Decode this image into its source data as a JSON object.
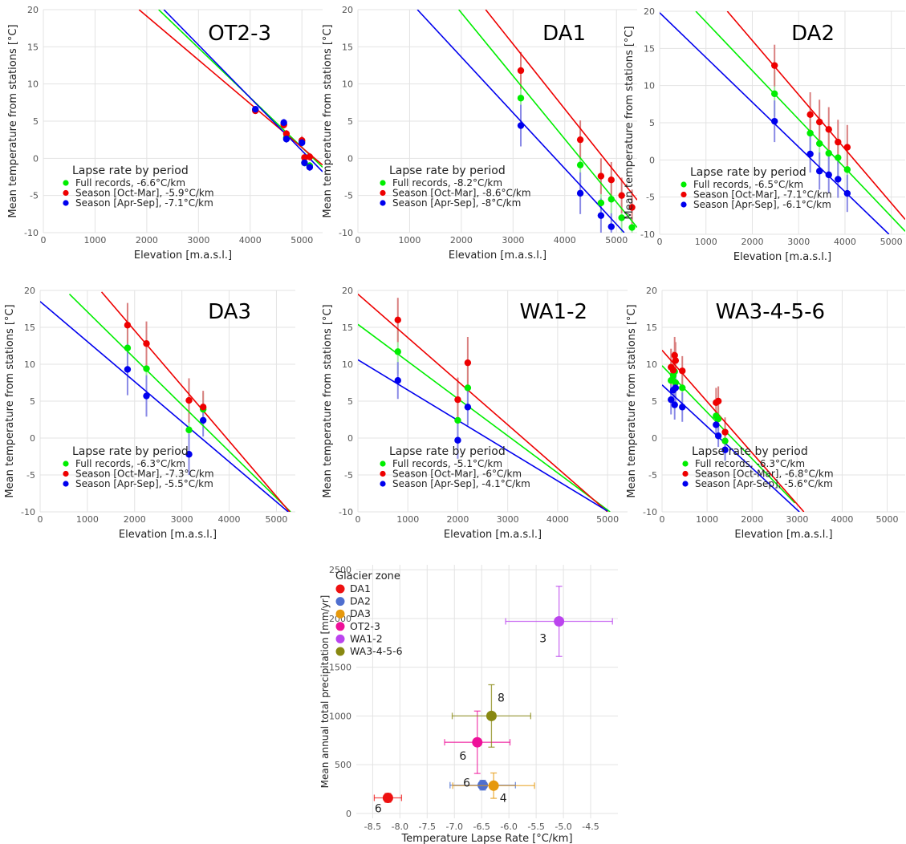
{
  "colors": {
    "full": "#00ee00",
    "oct_mar": "#ee0000",
    "apr_sep": "#0000ee",
    "error_full": "#a6e8a6",
    "error_oct": "#d98080",
    "error_apr": "#8a8ae6"
  },
  "chart_data": [
    {
      "type": "scatter",
      "title": "OT2-3",
      "xlabel": "Elevation [m.a.s.l.]",
      "ylabel": "Mean temperature from stations [°C]",
      "xlim": [
        0,
        5400
      ],
      "ylim": [
        -10,
        20
      ],
      "xticks": [
        0,
        1000,
        2000,
        3000,
        4000,
        5000
      ],
      "yticks": [
        -10,
        -5,
        0,
        5,
        10,
        15,
        20
      ],
      "legend_title": "Lapse rate by period",
      "legend": [
        "Full records,       -6.6°C/km",
        "Season [Oct-Mar],  -5.9°C/km",
        "Season [Apr-Sep],   -7.1°C/km"
      ],
      "series": [
        {
          "key": "full",
          "points": [
            [
              4100,
              6.5,
              0.3
            ],
            [
              4650,
              4.6,
              0.5
            ],
            [
              4700,
              2.8,
              0.5
            ],
            [
              5000,
              2.3,
              0.6
            ],
            [
              5050,
              -0.6,
              0.5
            ],
            [
              5150,
              -1.0,
              0.5
            ]
          ],
          "line": [
            [
              2230,
              20
            ],
            [
              5400,
              -1.2
            ]
          ]
        },
        {
          "key": "oct_mar",
          "points": [
            [
              4100,
              6.4,
              0.3
            ],
            [
              4650,
              4.5,
              0.5
            ],
            [
              4700,
              3.3,
              0.5
            ],
            [
              5000,
              2.4,
              0.6
            ],
            [
              5050,
              0.1,
              0.5
            ],
            [
              5150,
              0.2,
              0.5
            ]
          ],
          "line": [
            [
              1850,
              20
            ],
            [
              5400,
              -0.9
            ]
          ]
        },
        {
          "key": "apr_sep",
          "points": [
            [
              4100,
              6.6,
              0.3
            ],
            [
              4650,
              4.8,
              0.5
            ],
            [
              4700,
              2.6,
              0.5
            ],
            [
              5000,
              2.1,
              0.6
            ],
            [
              5050,
              -0.6,
              0.5
            ],
            [
              5150,
              -1.2,
              0.5
            ]
          ],
          "line": [
            [
              2330,
              20
            ],
            [
              5400,
              -1.8
            ]
          ]
        }
      ]
    },
    {
      "type": "scatter",
      "title": "DA1",
      "xlabel": "Elevation [m.a.s.l.]",
      "ylabel": "Mean temperature from stations [°C]",
      "xlim": [
        0,
        5400
      ],
      "ylim": [
        -10,
        20
      ],
      "xticks": [
        0,
        1000,
        2000,
        3000,
        4000,
        5000
      ],
      "yticks": [
        -10,
        -5,
        0,
        5,
        10,
        15,
        20
      ],
      "legend_title": "Lapse rate by period",
      "legend": [
        "Full records,        -8.2°C/km",
        "Season [Oct-Mar],  -8.6°C/km",
        "Season [Apr-Sep],   -8°C/km"
      ],
      "series": [
        {
          "key": "full",
          "points": [
            [
              3150,
              8.1,
              2.8
            ],
            [
              4300,
              -0.9,
              2.8
            ],
            [
              4700,
              -6.0,
              2.2
            ],
            [
              4900,
              -5.5,
              2.4
            ],
            [
              5100,
              -8.0,
              2.0
            ],
            [
              5300,
              -9.3,
              2.0
            ]
          ],
          "line": [
            [
              1950,
              20
            ],
            [
              5400,
              -9.3
            ]
          ]
        },
        {
          "key": "oct_mar",
          "points": [
            [
              3150,
              11.8,
              2.5
            ],
            [
              4300,
              2.5,
              2.6
            ],
            [
              4700,
              -2.4,
              2.4
            ],
            [
              4900,
              -2.9,
              2.4
            ],
            [
              5100,
              -5.0,
              2.4
            ],
            [
              5300,
              -6.6,
              2.4
            ]
          ],
          "line": [
            [
              2470,
              20
            ],
            [
              5400,
              -5.6
            ]
          ]
        },
        {
          "key": "apr_sep",
          "points": [
            [
              3150,
              4.4,
              2.8
            ],
            [
              4300,
              -4.7,
              2.8
            ],
            [
              4700,
              -7.7,
              2.3
            ],
            [
              4900,
              -9.2,
              1.8
            ]
          ],
          "line": [
            [
              1150,
              20
            ],
            [
              5150,
              -10
            ]
          ]
        }
      ]
    },
    {
      "type": "scatter",
      "title": "DA2",
      "xlabel": "Elevation [m.a.s.l.]",
      "ylabel": "Mean temperature from stations [°C]",
      "xlim": [
        0,
        5300
      ],
      "ylim": [
        -10,
        20
      ],
      "xticks": [
        0,
        1000,
        2000,
        3000,
        4000,
        5000
      ],
      "yticks": [
        -10,
        -5,
        0,
        5,
        10,
        15,
        20
      ],
      "legend_title": "Lapse rate by period",
      "legend": [
        "Full records,        -6.5°C/km",
        "Season [Oct-Mar],  -7.1°C/km",
        "Season [Apr-Sep],   -6.1°C/km"
      ],
      "series": [
        {
          "key": "full",
          "points": [
            [
              2480,
              8.9,
              3.0
            ],
            [
              3250,
              3.6,
              2.8
            ],
            [
              3450,
              2.2,
              2.8
            ],
            [
              3650,
              0.9,
              2.8
            ],
            [
              3850,
              0.3,
              2.8
            ],
            [
              4050,
              -1.3,
              2.8
            ]
          ],
          "line": [
            [
              780,
              20
            ],
            [
              5300,
              -9.6
            ]
          ]
        },
        {
          "key": "oct_mar",
          "points": [
            [
              2480,
              12.7,
              2.8
            ],
            [
              3250,
              6.1,
              3.0
            ],
            [
              3450,
              5.1,
              3.0
            ],
            [
              3650,
              4.1,
              3.0
            ],
            [
              3850,
              2.4,
              3.0
            ],
            [
              4050,
              1.7,
              3.0
            ]
          ],
          "line": [
            [
              1460,
              20
            ],
            [
              5300,
              -8.0
            ]
          ]
        },
        {
          "key": "apr_sep",
          "points": [
            [
              2480,
              5.2,
              2.8
            ],
            [
              3250,
              0.8,
              2.5
            ],
            [
              3450,
              -1.5,
              2.5
            ],
            [
              3650,
              -2.0,
              2.5
            ],
            [
              3850,
              -2.6,
              2.5
            ],
            [
              4050,
              -4.5,
              2.5
            ]
          ],
          "line": [
            [
              0,
              19.8
            ],
            [
              4950,
              -10
            ]
          ]
        }
      ]
    },
    {
      "type": "scatter",
      "title": "DA3",
      "xlabel": "Elevation [m.a.s.l.]",
      "ylabel": "Mean temperature from stations [°C]",
      "xlim": [
        0,
        5400
      ],
      "ylim": [
        -10,
        20
      ],
      "xticks": [
        0,
        1000,
        2000,
        3000,
        4000,
        5000
      ],
      "yticks": [
        -10,
        -5,
        0,
        5,
        10,
        15,
        20
      ],
      "legend_title": "Lapse rate by period",
      "legend": [
        "Full records,        -6.3°C/km",
        "Season [Oct-Mar],  -7.3°C/km",
        "Season [Apr-Sep],   -5.5°C/km"
      ],
      "series": [
        {
          "key": "full",
          "points": [
            [
              1850,
              12.2,
              3.0
            ],
            [
              2250,
              9.4,
              3.0
            ],
            [
              3150,
              1.1,
              3.0
            ],
            [
              3450,
              3.9,
              2.2
            ]
          ],
          "line": [
            [
              620,
              19.5
            ],
            [
              5300,
              -10
            ]
          ]
        },
        {
          "key": "oct_mar",
          "points": [
            [
              1850,
              15.3,
              3.0
            ],
            [
              2250,
              12.8,
              3.0
            ],
            [
              3150,
              5.1,
              3.0
            ],
            [
              3450,
              4.2,
              2.2
            ]
          ],
          "line": [
            [
              1300,
              19.8
            ],
            [
              5280,
              -10
            ]
          ]
        },
        {
          "key": "apr_sep",
          "points": [
            [
              1850,
              9.3,
              3.5
            ],
            [
              2250,
              5.7,
              2.8
            ],
            [
              3150,
              -2.2,
              2.8
            ],
            [
              3450,
              2.4,
              2.2
            ]
          ],
          "line": [
            [
              0,
              18.5
            ],
            [
              5250,
              -10
            ]
          ]
        }
      ]
    },
    {
      "type": "scatter",
      "title": "WA1-2",
      "xlabel": "Elevation [m.a.s.l.]",
      "ylabel": "Mean temperature from stations [°C]",
      "xlim": [
        0,
        5400
      ],
      "ylim": [
        -10,
        20
      ],
      "xticks": [
        0,
        1000,
        2000,
        3000,
        4000,
        5000
      ],
      "yticks": [
        -10,
        -5,
        0,
        5,
        10,
        15,
        20
      ],
      "legend_title": "Lapse rate by period",
      "legend": [
        "Full records,        -5.1°C/km",
        "Season [Oct-Mar],   -6°C/km",
        "Season [Apr-Sep],   -4.1°C/km"
      ],
      "series": [
        {
          "key": "full",
          "points": [
            [
              800,
              11.7,
              3.0
            ],
            [
              2000,
              2.4,
              3.0
            ],
            [
              2200,
              6.8,
              3.0
            ]
          ],
          "line": [
            [
              0,
              15.4
            ],
            [
              5050,
              -10
            ]
          ]
        },
        {
          "key": "oct_mar",
          "points": [
            [
              800,
              16.0,
              3.0
            ],
            [
              2000,
              5.2,
              3.0
            ],
            [
              2200,
              10.2,
              3.5
            ]
          ],
          "line": [
            [
              0,
              19.5
            ],
            [
              5000,
              -10
            ]
          ]
        },
        {
          "key": "apr_sep",
          "points": [
            [
              800,
              7.8,
              2.5
            ],
            [
              2000,
              -0.3,
              2.5
            ],
            [
              2200,
              4.2,
              2.5
            ]
          ],
          "line": [
            [
              0,
              10.6
            ],
            [
              5000,
              -9.9
            ]
          ]
        }
      ]
    },
    {
      "type": "scatter",
      "title": "WA3-4-5-6",
      "xlabel": "Elevation [m.a.s.l.]",
      "ylabel": "Mean temperature from stations [°C]",
      "xlim": [
        0,
        5400
      ],
      "ylim": [
        -10,
        20
      ],
      "xticks": [
        0,
        1000,
        2000,
        3000,
        4000,
        5000
      ],
      "yticks": [
        -10,
        -5,
        0,
        5,
        10,
        15,
        20
      ],
      "legend_title": "Lapse rate by period",
      "legend": [
        "Full records,        -6.3°C/km",
        "Season [Oct-Mar],  -6.8°C/km",
        "Season [Apr-Sep],   -5.6°C/km"
      ],
      "series": [
        {
          "key": "full",
          "points": [
            [
              200,
              7.8,
              2.0
            ],
            [
              250,
              8.5,
              2.0
            ],
            [
              280,
              9.0,
              2.0
            ],
            [
              300,
              7.5,
              2.0
            ],
            [
              450,
              6.8,
              2.0
            ],
            [
              1200,
              3.0,
              1.5
            ],
            [
              1250,
              2.6,
              1.5
            ],
            [
              1400,
              -0.4,
              1.5
            ]
          ],
          "line": [
            [
              0,
              9.8
            ],
            [
              2950,
              -8.8
            ]
          ]
        },
        {
          "key": "oct_mar",
          "points": [
            [
              200,
              9.6,
              2.5
            ],
            [
              250,
              9.2,
              2.5
            ],
            [
              280,
              11.2,
              2.5
            ],
            [
              300,
              10.5,
              2.5
            ],
            [
              450,
              9.1,
              2.0
            ],
            [
              1200,
              4.8,
              2.0
            ],
            [
              1250,
              5.0,
              2.0
            ],
            [
              1400,
              0.8,
              2.0
            ]
          ],
          "line": [
            [
              0,
              11.9
            ],
            [
              3150,
              -10
            ]
          ]
        },
        {
          "key": "apr_sep",
          "points": [
            [
              200,
              5.2,
              2.0
            ],
            [
              250,
              6.5,
              2.0
            ],
            [
              280,
              4.5,
              2.0
            ],
            [
              300,
              6.8,
              2.0
            ],
            [
              450,
              4.2,
              2.0
            ],
            [
              1200,
              1.8,
              1.5
            ],
            [
              1250,
              0.3,
              1.5
            ],
            [
              1400,
              -1.6,
              1.5
            ]
          ],
          "line": [
            [
              0,
              7.2
            ],
            [
              3050,
              -10
            ]
          ]
        }
      ]
    },
    {
      "type": "scatter",
      "title": "",
      "xlabel": "Temperature Lapse Rate [°C/km]",
      "ylabel": "Mean annual total precipitation [mm/yr]",
      "xlim": [
        -8.8,
        -4.0
      ],
      "ylim": [
        -50,
        2550
      ],
      "xticks": [
        -8.5,
        -8.0,
        -7.5,
        -7.0,
        -6.5,
        -6.0,
        -5.5,
        -5.0,
        -4.5
      ],
      "xticklabels": [
        "-8.5",
        "-8.0",
        "-7.5",
        "-7.0",
        "-6.5",
        "-6.0",
        "-5.5",
        "-5.0",
        "-4.5"
      ],
      "yticks": [
        0,
        500,
        1000,
        1500,
        2000,
        2500
      ],
      "legend_title": "Glacier zone",
      "legend_position": "top-left",
      "points": [
        {
          "zone": "DA1",
          "color": "#ee1111",
          "x": -8.22,
          "y": 160,
          "xerr": 0.25,
          "yerr": 45,
          "label": "6"
        },
        {
          "zone": "DA2",
          "color": "#4f6fcf",
          "x": -6.48,
          "y": 290,
          "xerr": 0.6,
          "yerr": 50,
          "label": "6"
        },
        {
          "zone": "DA3",
          "color": "#e6990d",
          "x": -6.28,
          "y": 285,
          "xerr": 0.75,
          "yerr": 130,
          "label": "4"
        },
        {
          "zone": "OT2-3",
          "color": "#ee1199",
          "x": -6.58,
          "y": 730,
          "xerr": 0.6,
          "yerr": 320,
          "label": "6"
        },
        {
          "zone": "WA1-2",
          "color": "#bb44ee",
          "x": -5.08,
          "y": 1970,
          "xerr": 0.98,
          "yerr": 360,
          "label": "3"
        },
        {
          "zone": "WA3-4-5-6",
          "color": "#888811",
          "x": -6.32,
          "y": 1000,
          "xerr": 0.72,
          "yerr": 320,
          "label": "8"
        }
      ]
    }
  ]
}
